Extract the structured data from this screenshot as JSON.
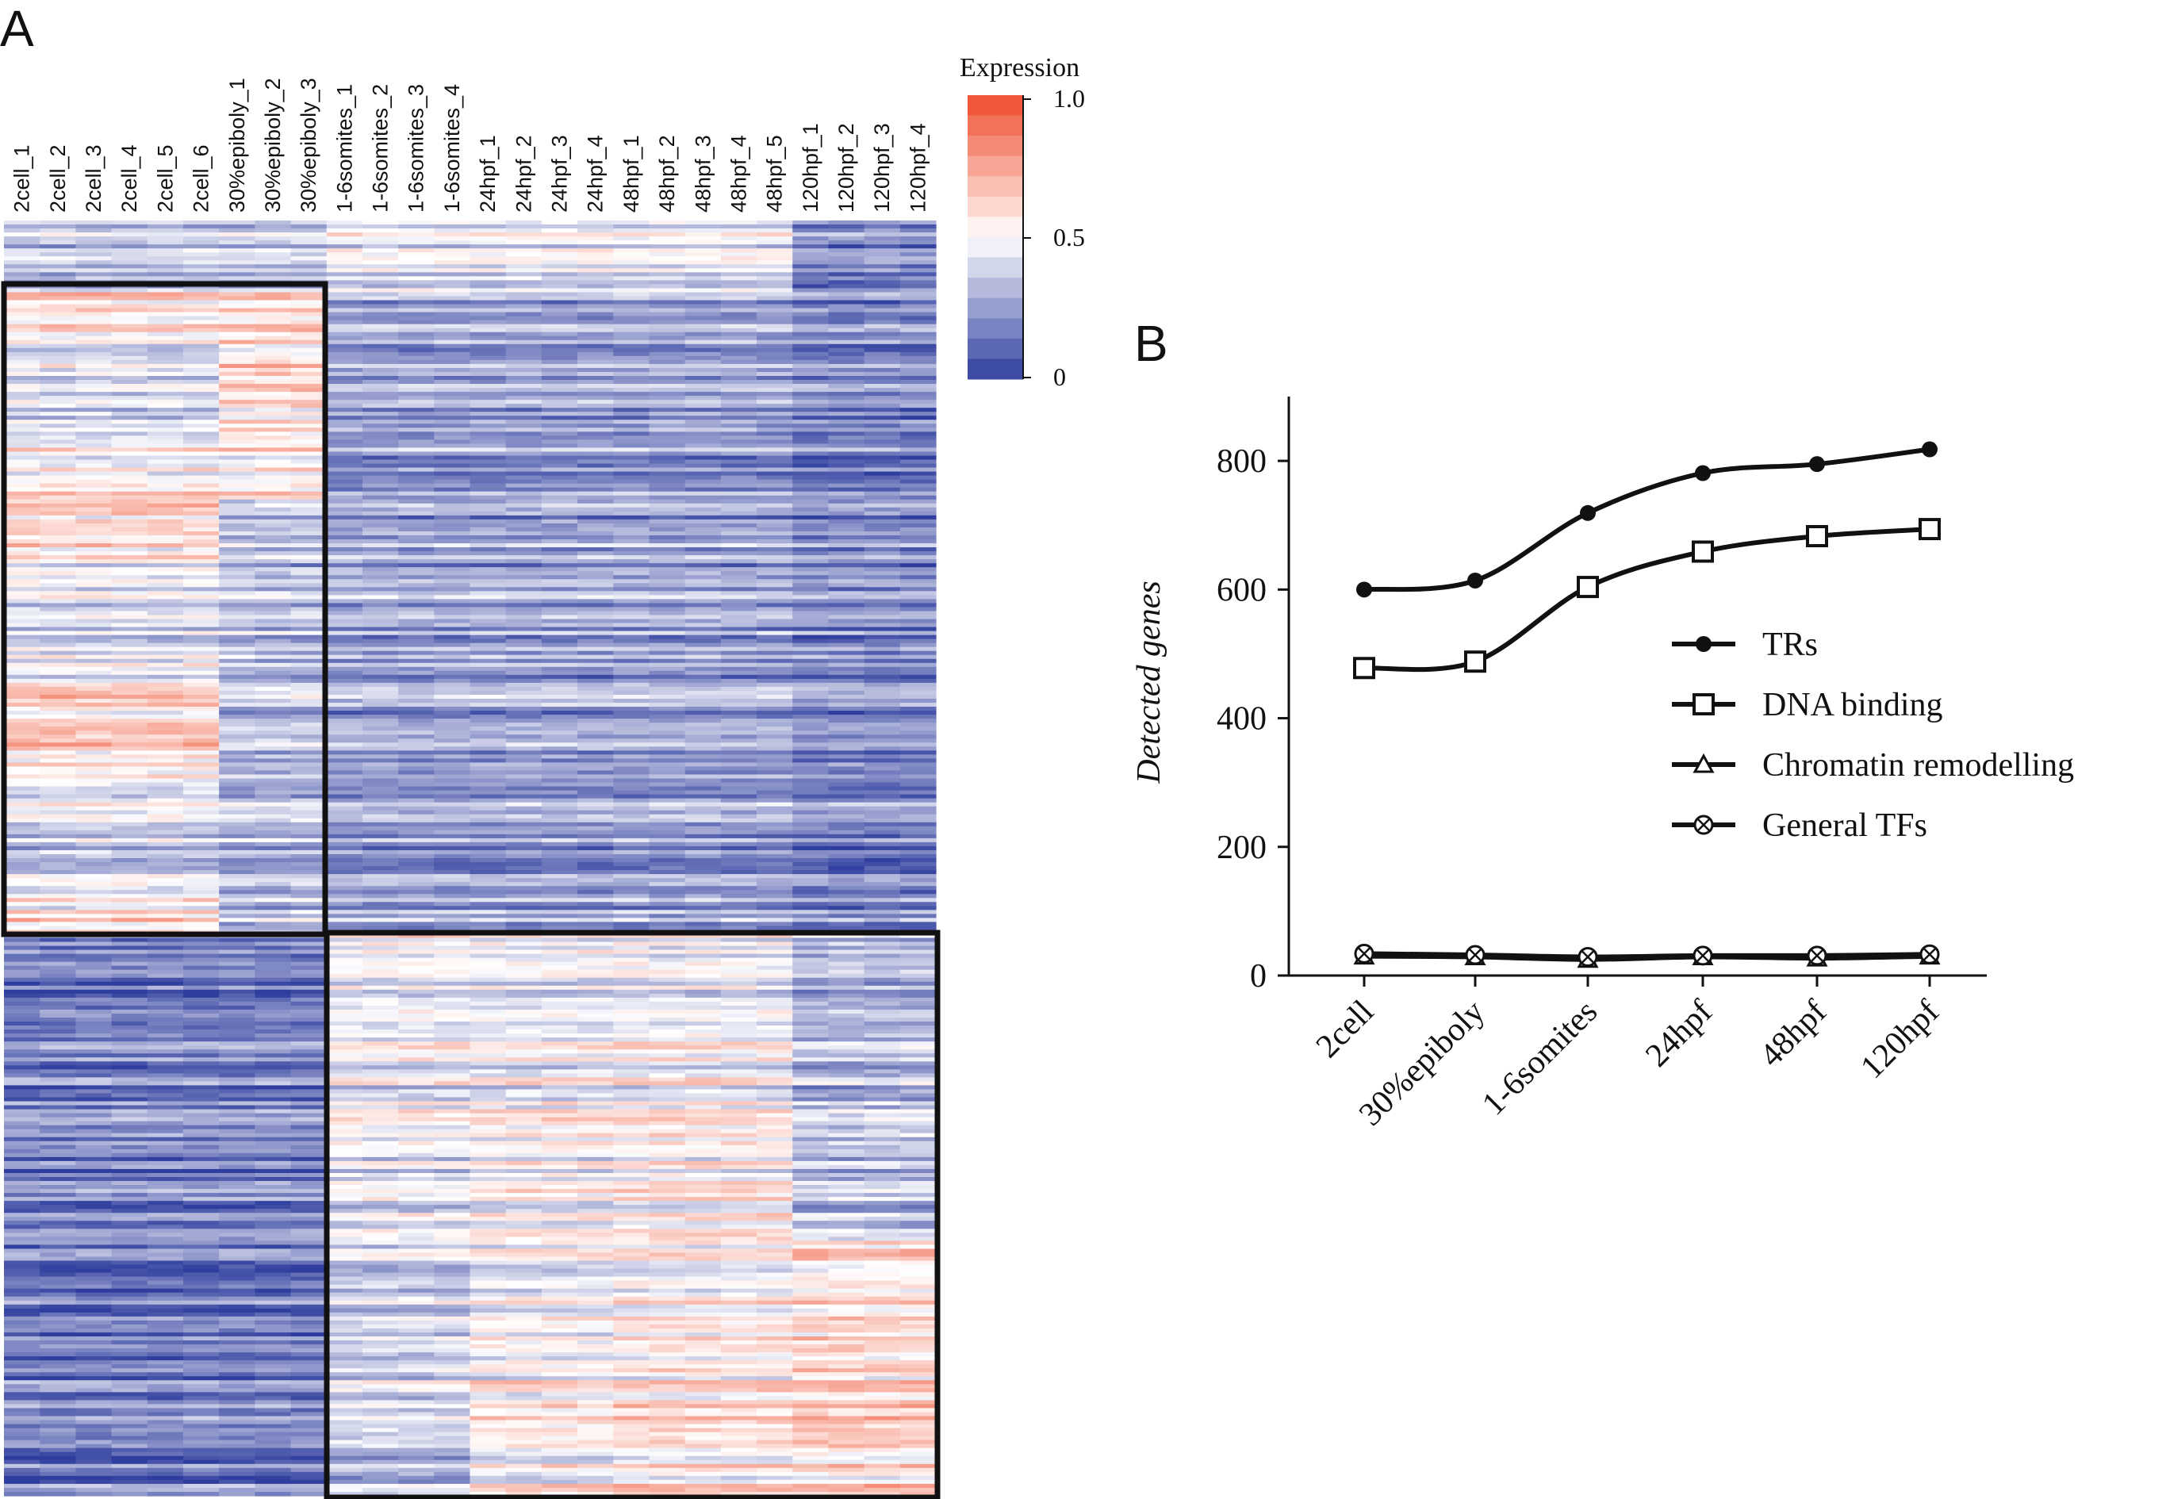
{
  "panel_labels": {
    "a": "A",
    "b": "B"
  },
  "heatmap": {
    "samples": [
      "2cell_1",
      "2cell_2",
      "2cell_3",
      "2cell_4",
      "2cell_5",
      "2cell_6",
      "30%epiboly_1",
      "30%epiboly_2",
      "30%epiboly_3",
      "1-6somites_1",
      "1-6somites_2",
      "1-6somites_3",
      "1-6somites_4",
      "24hpf_1",
      "24hpf_2",
      "24hpf_3",
      "24hpf_4",
      "48hpf_1",
      "48hpf_2",
      "48hpf_3",
      "48hpf_4",
      "48hpf_5",
      "120hpf_1",
      "120hpf_2",
      "120hpf_3",
      "120hpf_4"
    ],
    "colorbar": {
      "title": "Expression",
      "ticks": [
        "1.0",
        "0.5",
        "0"
      ],
      "low_color": "#2f3e9e",
      "mid_color": "#ffffff",
      "high_color": "#ef4b2a"
    },
    "cluster_1_samples": [
      "2cell",
      "30%epiboly"
    ],
    "cluster_2_samples": [
      "1-6somites",
      "24hpf",
      "48hpf",
      "120hpf"
    ]
  },
  "chart_data": {
    "type": "line",
    "categories": [
      "2cell",
      "30%epiboly",
      "1-6somites",
      "24hpf",
      "48hpf",
      "120hpf"
    ],
    "xlabel": "",
    "ylabel": "Detected genes",
    "ylim": [
      0,
      900
    ],
    "yticks": [
      "0",
      "200",
      "400",
      "600",
      "800"
    ],
    "grid": false,
    "legend_placement": "center-right",
    "series": [
      {
        "name": "TRs",
        "marker": "filled-circle",
        "values": [
          600,
          614,
          719,
          781,
          795,
          818
        ]
      },
      {
        "name": "DNA binding",
        "marker": "open-square",
        "values": [
          478,
          488,
          604,
          659,
          683,
          694
        ]
      },
      {
        "name": "Chromatin remodelling",
        "marker": "open-triangle",
        "values": [
          30,
          29,
          25,
          29,
          27,
          30
        ]
      },
      {
        "name": "General TFs",
        "marker": "circle-x",
        "values": [
          34,
          32,
          29,
          31,
          31,
          33
        ]
      }
    ]
  }
}
